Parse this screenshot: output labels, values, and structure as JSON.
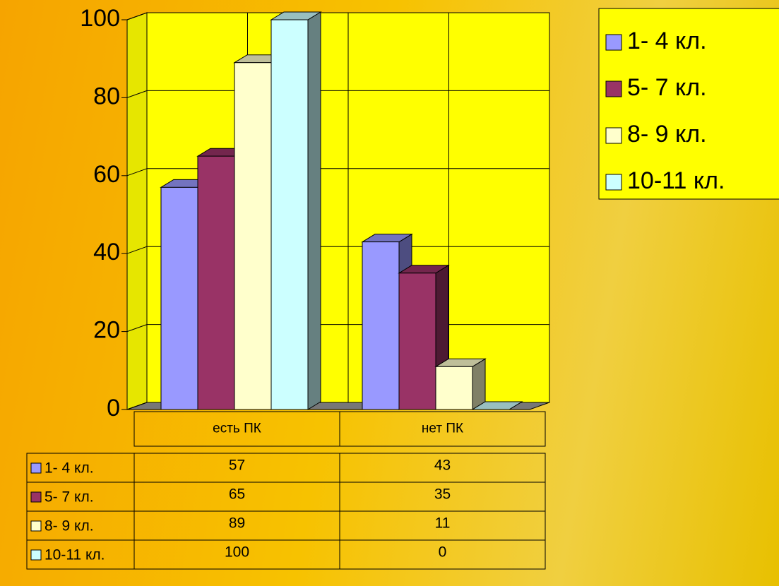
{
  "chart_data": {
    "type": "bar3d",
    "categories": [
      "есть ПК",
      "нет ПК"
    ],
    "series": [
      {
        "name": "1- 4 кл.",
        "color": "#9999ff",
        "values": [
          57,
          43
        ]
      },
      {
        "name": "5- 7 кл.",
        "color": "#993366",
        "values": [
          65,
          35
        ]
      },
      {
        "name": "8- 9 кл.",
        "color": "#ffffcc",
        "values": [
          89,
          11
        ]
      },
      {
        "name": "10-11 кл.",
        "color": "#ccffff",
        "values": [
          100,
          0
        ]
      }
    ],
    "ylim": [
      0,
      100
    ],
    "yticks": [
      0,
      20,
      40,
      60,
      80,
      100
    ],
    "grid": true,
    "legend": "top-right",
    "data_table": true
  }
}
